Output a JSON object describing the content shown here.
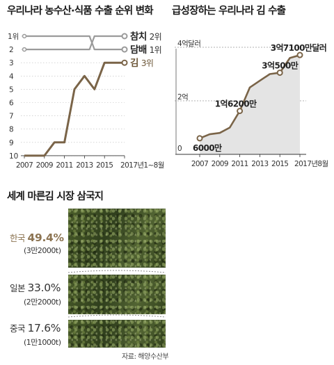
{
  "chart_data": [
    {
      "type": "line",
      "title": "우리나라 농수산·식품 수출 순위 변화",
      "x_ticks": [
        "2007",
        "2009",
        "2011",
        "2013",
        "2015",
        "2017년1~8월"
      ],
      "y_ticks": [
        "1위",
        "2",
        "3",
        "4",
        "5",
        "6",
        "7",
        "8",
        "9",
        "10"
      ],
      "y_inverted": true,
      "ylim": [
        1,
        10
      ],
      "series": [
        {
          "name": "담배 1위",
          "emphasis": false,
          "points": [
            [
              2007,
              1
            ],
            [
              2009,
              1
            ],
            [
              2011,
              1
            ],
            [
              2013,
              1
            ],
            [
              2013.5,
              1
            ],
            [
              2014,
              2
            ],
            [
              2014.5,
              2
            ],
            [
              2015,
              2
            ],
            [
              2017,
              2
            ]
          ]
        },
        {
          "name": "참치 2위",
          "emphasis": false,
          "points": [
            [
              2007,
              2
            ],
            [
              2009,
              2
            ],
            [
              2011,
              2
            ],
            [
              2013,
              2
            ],
            [
              2013.5,
              2
            ],
            [
              2014,
              1
            ],
            [
              2014.5,
              1
            ],
            [
              2015,
              1
            ],
            [
              2017,
              1
            ]
          ]
        },
        {
          "name": "김 3위",
          "emphasis": true,
          "points": [
            [
              2007,
              10
            ],
            [
              2009,
              10
            ],
            [
              2010,
              9
            ],
            [
              2011,
              9
            ],
            [
              2012,
              5
            ],
            [
              2013,
              4
            ],
            [
              2014,
              5
            ],
            [
              2015,
              3
            ],
            [
              2016,
              3
            ],
            [
              2017,
              3
            ]
          ]
        }
      ],
      "legend_labels": [
        {
          "series": 0,
          "name": "담배",
          "rank": "1위"
        },
        {
          "series": 1,
          "name": "참치",
          "rank": "2위"
        },
        {
          "series": 2,
          "name": "김",
          "rank": "3위"
        }
      ]
    },
    {
      "type": "area",
      "title": "급성장하는 우리나라 김 수출",
      "x_ticks": [
        "2007",
        "2009",
        "2011",
        "2013",
        "2015",
        "2017년8월"
      ],
      "y_ticks": [
        {
          "value": 0,
          "label": "0"
        },
        {
          "value": 2,
          "label": "2억"
        },
        {
          "value": 4,
          "label": "4억달러"
        }
      ],
      "ylim": [
        0,
        4
      ],
      "unit": "억달러",
      "series": [
        {
          "name": "",
          "points": [
            [
              2007,
              0.6
            ],
            [
              2008,
              0.75
            ],
            [
              2009,
              0.8
            ],
            [
              2010,
              1.0
            ],
            [
              2011,
              1.62
            ],
            [
              2012,
              2.5
            ],
            [
              2013,
              2.75
            ],
            [
              2014,
              3.0
            ],
            [
              2015,
              3.05
            ],
            [
              2016,
              3.6
            ],
            [
              2017,
              3.71
            ]
          ]
        }
      ],
      "annotations": [
        {
          "x": 2007,
          "y": 0.6,
          "label": "6000만",
          "marker": true
        },
        {
          "x": 2011,
          "y": 1.62,
          "label": "1억6200만",
          "marker": true
        },
        {
          "x": 2015,
          "y": 3.05,
          "label": "3억500만",
          "marker": true
        },
        {
          "x": 2017,
          "y": 3.71,
          "label": "3억7100만달러",
          "marker": true
        }
      ]
    },
    {
      "type": "bar",
      "title": "세계 마른김 시장 삼국지",
      "categories": [
        "한국",
        "일본",
        "중국"
      ],
      "values": [
        49.4,
        33.0,
        17.6
      ],
      "value_labels": [
        "49.4%",
        "33.0%",
        "17.6%"
      ],
      "sub_labels": [
        "(3만2000t)",
        "(2만2000t)",
        "(1만1000t)"
      ],
      "unit": "%",
      "highlight_color": "#8c7452",
      "source": "자료: 해양수산부"
    }
  ],
  "colors": {
    "accent": "#7a6448",
    "grey_line": "#9a9a9a",
    "axis": "#555555",
    "area_fill": "#e4e4e4"
  }
}
